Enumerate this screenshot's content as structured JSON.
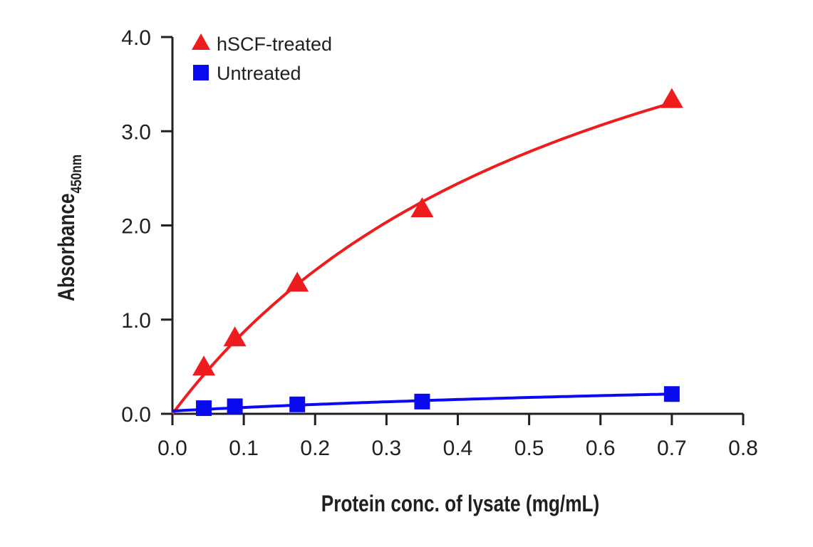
{
  "chart_data": {
    "type": "scatter",
    "title": "",
    "xlabel": "Protein conc. of lysate (mg/mL)",
    "ylabel": "Absorbance",
    "ylabel_subscript": "450nm",
    "xlim": [
      0,
      0.8
    ],
    "ylim": [
      0,
      4.0
    ],
    "x_ticks": [
      "0.0",
      "0.1",
      "0.2",
      "0.3",
      "0.4",
      "0.5",
      "0.6",
      "0.7",
      "0.8"
    ],
    "y_ticks": [
      "0.0",
      "1.0",
      "2.0",
      "3.0",
      "4.0"
    ],
    "grid": false,
    "legend_position": "top-left",
    "series": [
      {
        "name": "hSCF-treated",
        "marker": "triangle",
        "color": "#ee1c1c",
        "x": [
          0.044,
          0.0875,
          0.175,
          0.35,
          0.7
        ],
        "y": [
          0.49,
          0.8,
          1.38,
          2.17,
          3.33
        ],
        "fit": {
          "type": "hyperbolic",
          "offset": 0,
          "vmax": 6.19,
          "k": 0.613
        }
      },
      {
        "name": "Untreated",
        "marker": "square",
        "color": "#0a0af0",
        "x": [
          0.044,
          0.0875,
          0.175,
          0.35,
          0.7
        ],
        "y": [
          0.06,
          0.08,
          0.1,
          0.13,
          0.21
        ],
        "fit": {
          "type": "hyperbolic",
          "offset": 0.03,
          "vmax": 0.494,
          "k": 1.22
        }
      }
    ]
  }
}
